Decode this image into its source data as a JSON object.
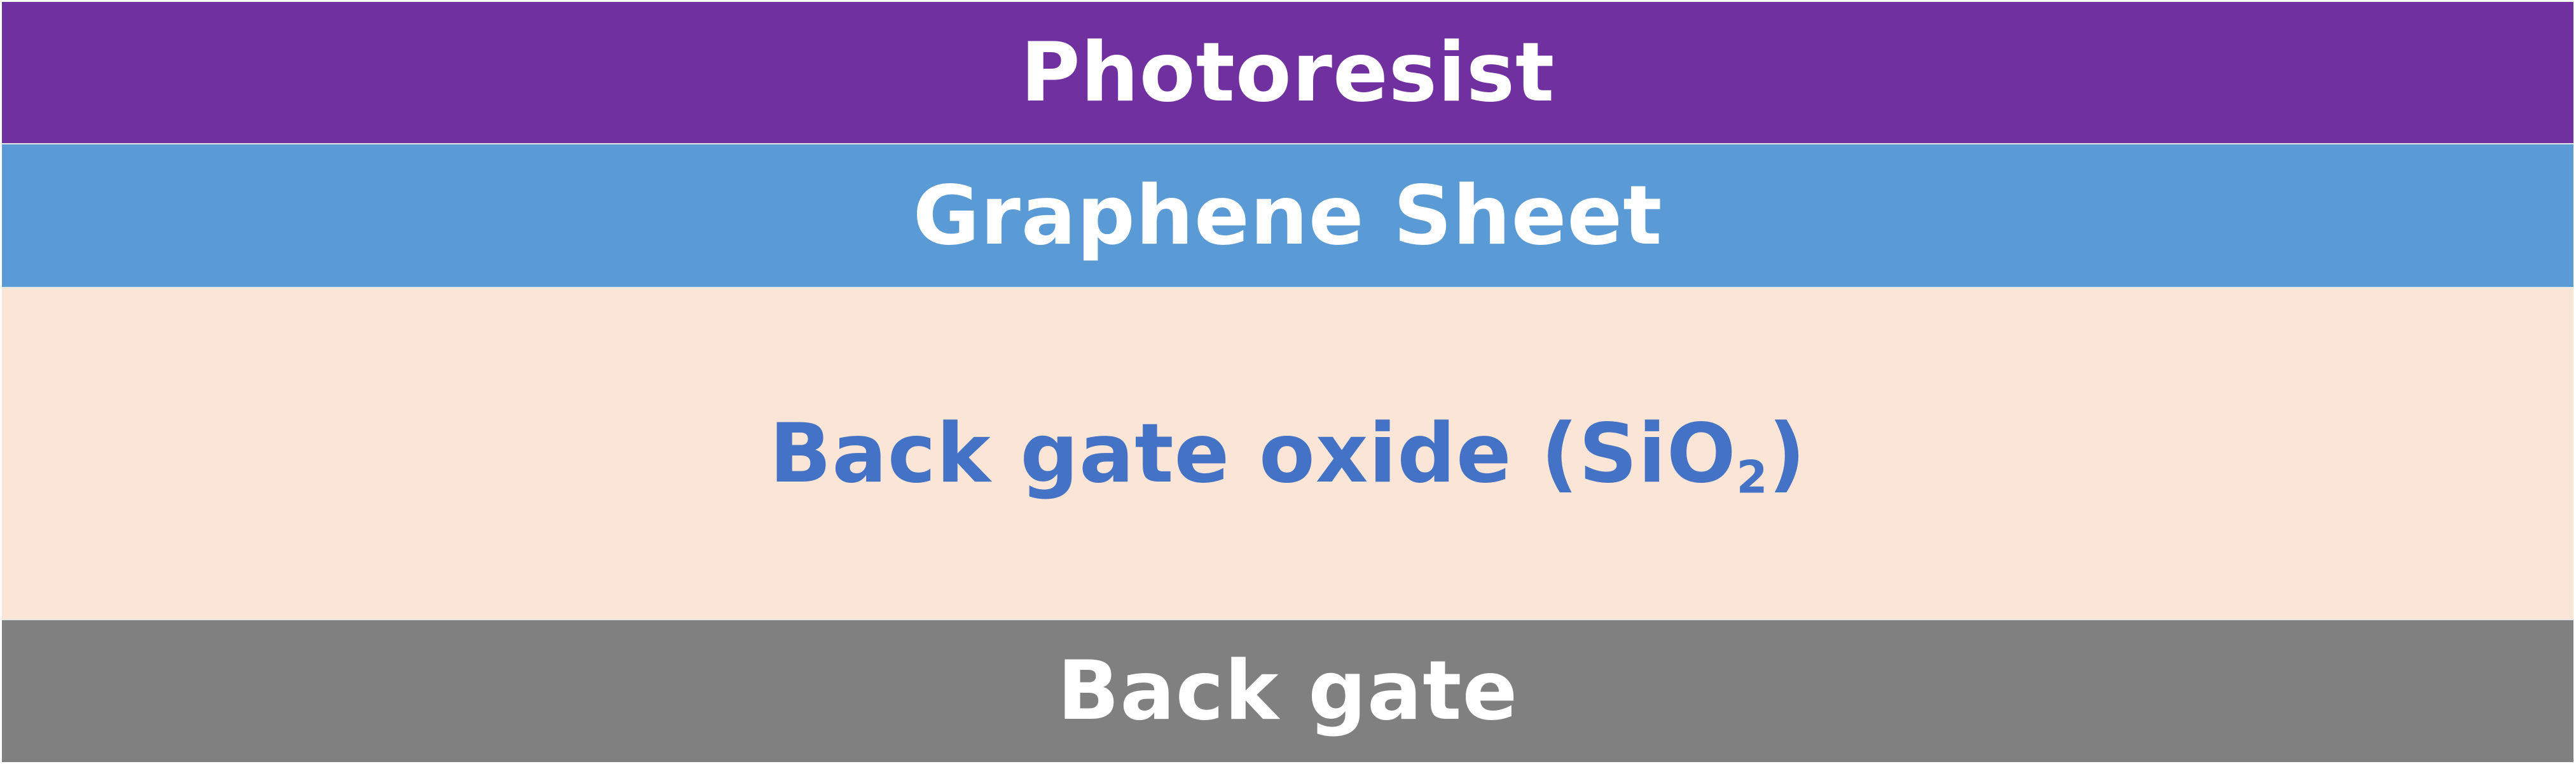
{
  "layers": [
    {
      "label": "Photoresist",
      "color": "#7030a0",
      "text_color": "#ffffff"
    },
    {
      "label": "Graphene Sheet",
      "color": "#5b9bd5",
      "text_color": "#ffffff"
    },
    {
      "label_main": "Back gate oxide (SiO",
      "label_sub": "2",
      "label_end": ")",
      "color": "#fbe5d6",
      "text_color": "#4472c4"
    },
    {
      "label": "Back gate",
      "color": "#808080",
      "text_color": "#ffffff"
    }
  ]
}
